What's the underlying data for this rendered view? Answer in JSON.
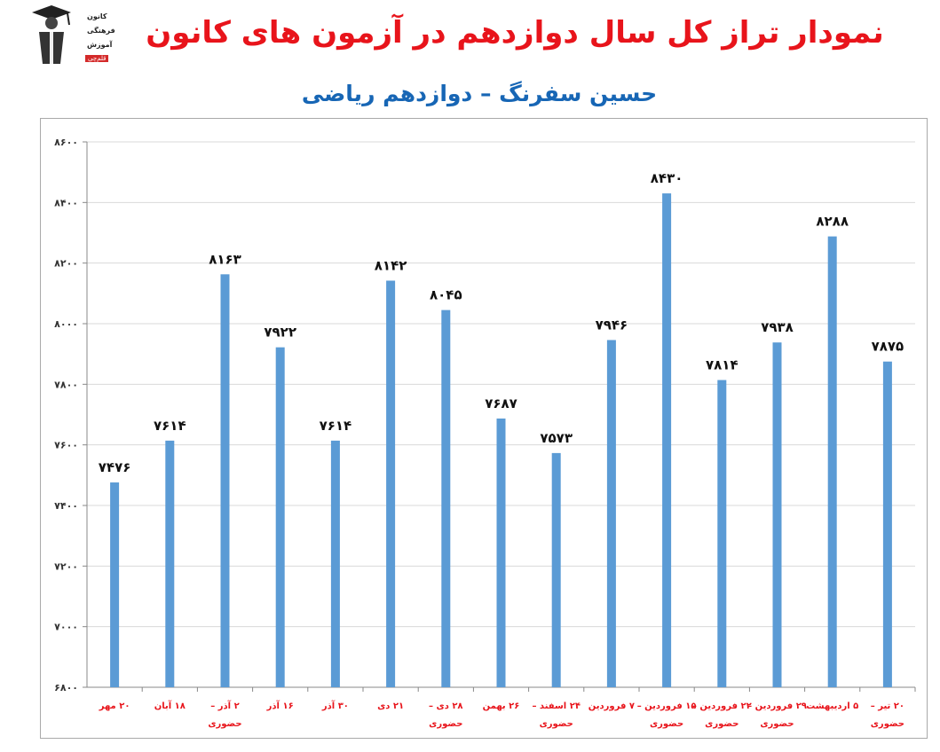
{
  "header": {
    "title": "نمودار تراز کل سال دوازدهم در آزمون های کانون",
    "subtitle": "حسین سفرنگ – دوازدهم ریاضی",
    "logo_text": [
      "کانون",
      "فرهنگی",
      "آموزش",
      "قلم‌چی"
    ]
  },
  "colors": {
    "title": "#e8141b",
    "subtitle": "#1766b5",
    "bar": "#5b9bd5",
    "category_label": "#e8141b",
    "grid": "#d9d9d9"
  },
  "chart_data": {
    "type": "bar",
    "title": "نمودار تراز کل سال دوازدهم در آزمون های کانون",
    "subtitle": "حسین سفرنگ – دوازدهم ریاضی",
    "xlabel": "",
    "ylabel": "",
    "ylim": [
      6800,
      8600
    ],
    "yticks": [
      6800,
      7000,
      7200,
      7400,
      7600,
      7800,
      8000,
      8200,
      8400,
      8600
    ],
    "ytick_labels": [
      "۶۸۰۰",
      "۷۰۰۰",
      "۷۲۰۰",
      "۷۴۰۰",
      "۷۶۰۰",
      "۷۸۰۰",
      "۸۰۰۰",
      "۸۲۰۰",
      "۸۴۰۰",
      "۸۶۰۰"
    ],
    "grid": true,
    "legend": "none",
    "categories": [
      [
        "۲۰ مهر"
      ],
      [
        "۱۸ آبان"
      ],
      [
        "۲ آذر –",
        "حضوری"
      ],
      [
        "۱۶ آذر"
      ],
      [
        "۳۰ آذر"
      ],
      [
        "۲۱ دی"
      ],
      [
        "۲۸ دی –",
        "حضوری"
      ],
      [
        "۲۶ بهمن"
      ],
      [
        "۲۴ اسفند –",
        "حضوری"
      ],
      [
        "۷ فروردین"
      ],
      [
        "۱۵ فروردین –",
        "حضوری"
      ],
      [
        "۲۲ فروردین –",
        "حضوری"
      ],
      [
        "۲۹ فروردین –",
        "حضوری"
      ],
      [
        "۵ اردیبهشت"
      ],
      [
        "۲۰ تیر –",
        "حضوری"
      ]
    ],
    "values": [
      7476,
      7614,
      8163,
      7922,
      7614,
      8142,
      8045,
      7687,
      7573,
      7946,
      8430,
      7814,
      7938,
      8288,
      7875
    ],
    "value_labels": [
      "۷۴۷۶",
      "۷۶۱۴",
      "۸۱۶۳",
      "۷۹۲۲",
      "۷۶۱۴",
      "۸۱۴۲",
      "۸۰۴۵",
      "۷۶۸۷",
      "۷۵۷۳",
      "۷۹۴۶",
      "۸۴۳۰",
      "۷۸۱۴",
      "۷۹۳۸",
      "۸۲۸۸",
      "۷۸۷۵"
    ]
  }
}
